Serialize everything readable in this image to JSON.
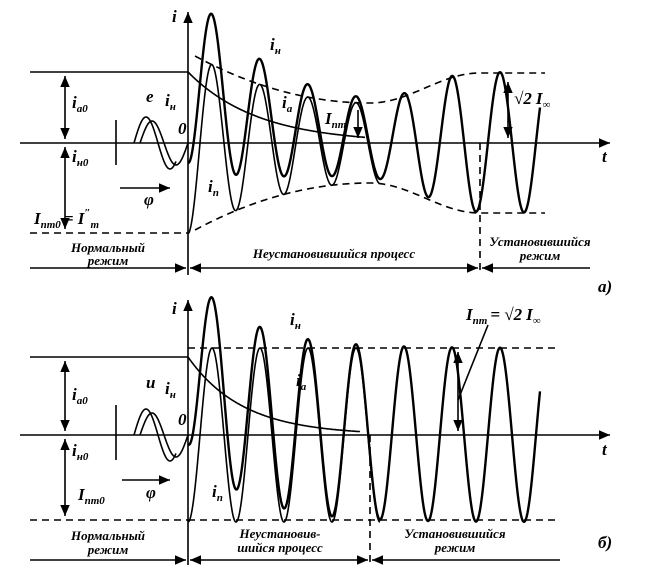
{
  "panels": [
    {
      "axis_i": "i",
      "axis_t": "t",
      "caption": "а)",
      "in_top": [
        "i",
        "н"
      ],
      "ia": [
        "i",
        "a"
      ],
      "Ipm": [
        "I",
        "пm"
      ],
      "steady_amp": [
        "√2",
        "I",
        "∞"
      ],
      "ia0": [
        "i",
        "a0"
      ],
      "in0": [
        "i",
        "н0"
      ],
      "e": "e",
      "in_small": [
        "i",
        "н"
      ],
      "zero": "0",
      "phi": "φ",
      "Ipm0": [
        "I",
        "пm0",
        "= I",
        "″",
        "m"
      ],
      "ip": [
        "i",
        "п"
      ],
      "normal": [
        "Нормальный",
        "режим"
      ],
      "transient": [
        "Неустановившийся процесс"
      ],
      "steady": [
        "Установившийся",
        "режим"
      ]
    },
    {
      "axis_i": "i",
      "axis_t": "t",
      "caption": "б)",
      "in_top": [
        "i",
        "н"
      ],
      "ia": [
        "i",
        "a"
      ],
      "Ipm": [
        "I",
        "пm",
        "= √2",
        "I",
        "∞"
      ],
      "ia0": [
        "i",
        "a0"
      ],
      "in0": [
        "i",
        "н0"
      ],
      "e": "u",
      "in_small": [
        "i",
        "н"
      ],
      "zero": "0",
      "phi": "φ",
      "Ipm0": [
        "I",
        "пm0"
      ],
      "ip": [
        "i",
        "п"
      ],
      "normal": [
        "Нормальный",
        "режим"
      ],
      "transient": [
        "Неустановив-",
        "шийся процесс"
      ],
      "steady": [
        "Установившийся",
        "режим"
      ]
    }
  ]
}
